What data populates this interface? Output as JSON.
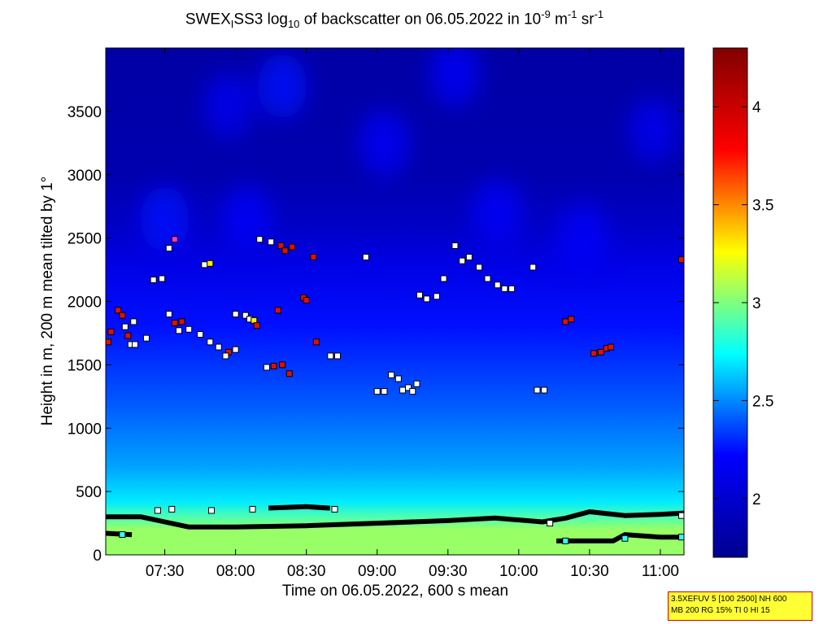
{
  "title": {
    "prefix": "SWEX",
    "sub1": "I",
    "mid1": "SS3 log",
    "sub2": "10",
    "mid2": " of backscatter on 06.05.2022 in 10",
    "sup1": "-9",
    "mid3": " m",
    "sup2": "-1",
    "mid4": " sr",
    "sup3": "-1"
  },
  "info_box": {
    "line1": "3.5XEFUV 5 [100 2500] NH 600",
    "line2": "MB 200 RG 15% TI 0 HI 15"
  },
  "chart_data": {
    "type": "heatmap",
    "xlabel": "Time on 06.05.2022, 600 s mean",
    "ylabel": "Height in m, 200 m mean tilted by 1°",
    "x_range_hours": [
      7.083,
      11.167
    ],
    "ylim": [
      0,
      4000
    ],
    "x_ticks": [
      {
        "label": "07:30",
        "h": 7.5
      },
      {
        "label": "08:00",
        "h": 8.0
      },
      {
        "label": "08:30",
        "h": 8.5
      },
      {
        "label": "09:00",
        "h": 9.0
      },
      {
        "label": "09:30",
        "h": 9.5
      },
      {
        "label": "10:00",
        "h": 10.0
      },
      {
        "label": "10:30",
        "h": 10.5
      },
      {
        "label": "11:00",
        "h": 11.0
      }
    ],
    "y_ticks": [
      0,
      500,
      1000,
      1500,
      2000,
      2500,
      3000,
      3500
    ],
    "colorbar": {
      "range": [
        1.7,
        4.3
      ],
      "ticks": [
        2,
        2.5,
        3,
        3.5,
        4
      ],
      "colors": [
        "#00008f",
        "#0000ff",
        "#00ffff",
        "#ffff00",
        "#ff0000",
        "#800000"
      ]
    },
    "background_profile": [
      {
        "h": 0,
        "v": 3.05
      },
      {
        "h": 200,
        "v": 3.05
      },
      {
        "h": 300,
        "v": 2.9
      },
      {
        "h": 420,
        "v": 2.7
      },
      {
        "h": 700,
        "v": 2.55
      },
      {
        "h": 1200,
        "v": 2.4
      },
      {
        "h": 1800,
        "v": 2.25
      },
      {
        "h": 2300,
        "v": 2.1
      },
      {
        "h": 2600,
        "v": 1.95
      },
      {
        "h": 3000,
        "v": 1.85
      },
      {
        "h": 4000,
        "v": 1.8
      }
    ],
    "cloud_patches": [
      {
        "t": 8.33,
        "h": 3700,
        "v": 2.25
      },
      {
        "t": 7.95,
        "h": 3550,
        "v": 2.15
      },
      {
        "t": 9.55,
        "h": 3800,
        "v": 2.2
      },
      {
        "t": 10.95,
        "h": 3350,
        "v": 2.15
      },
      {
        "t": 9.05,
        "h": 3250,
        "v": 2.2
      },
      {
        "t": 9.85,
        "h": 2700,
        "v": 2.2
      },
      {
        "t": 8.08,
        "h": 2650,
        "v": 2.2
      },
      {
        "t": 10.45,
        "h": 2500,
        "v": 2.2
      },
      {
        "t": 7.5,
        "h": 2650,
        "v": 2.25
      }
    ],
    "layer_lines": [
      {
        "name": "",
        "points": [
          [
            7.083,
            300
          ],
          [
            7.333,
            300
          ],
          [
            7.5,
            260
          ],
          [
            7.667,
            220
          ],
          [
            8.0,
            220
          ],
          [
            8.5,
            230
          ],
          [
            9.0,
            250
          ],
          [
            9.5,
            270
          ],
          [
            9.833,
            290
          ],
          [
            10.167,
            260
          ],
          [
            10.333,
            290
          ],
          [
            10.5,
            340
          ],
          [
            10.75,
            310
          ],
          [
            11.0,
            320
          ],
          [
            11.167,
            330
          ]
        ]
      },
      {
        "name": "",
        "points": [
          [
            7.083,
            170
          ],
          [
            7.25,
            160
          ]
        ]
      },
      {
        "name": "",
        "points": [
          [
            8.25,
            370
          ],
          [
            8.5,
            380
          ],
          [
            8.65,
            370
          ]
        ]
      },
      {
        "name": "",
        "points": [
          [
            10.283,
            110
          ],
          [
            10.667,
            110
          ],
          [
            10.75,
            160
          ],
          [
            11.0,
            140
          ],
          [
            11.167,
            140
          ]
        ]
      }
    ],
    "markers": [
      {
        "t": 7.1,
        "h": 1680,
        "c": "red"
      },
      {
        "t": 7.12,
        "h": 1760,
        "c": "red"
      },
      {
        "t": 7.17,
        "h": 1930,
        "c": "red"
      },
      {
        "t": 7.2,
        "h": 1890,
        "c": "red"
      },
      {
        "t": 7.22,
        "h": 1800,
        "c": "white"
      },
      {
        "t": 7.24,
        "h": 1730,
        "c": "red"
      },
      {
        "t": 7.26,
        "h": 1660,
        "c": "white"
      },
      {
        "t": 7.29,
        "h": 1660,
        "c": "white"
      },
      {
        "t": 7.28,
        "h": 1840,
        "c": "white"
      },
      {
        "t": 7.37,
        "h": 1710,
        "c": "white"
      },
      {
        "t": 7.42,
        "h": 2170,
        "c": "white"
      },
      {
        "t": 7.48,
        "h": 2180,
        "c": "white"
      },
      {
        "t": 7.53,
        "h": 2420,
        "c": "white"
      },
      {
        "t": 7.57,
        "h": 2490,
        "c": "magenta"
      },
      {
        "t": 7.53,
        "h": 1900,
        "c": "white"
      },
      {
        "t": 7.57,
        "h": 1830,
        "c": "red"
      },
      {
        "t": 7.62,
        "h": 1840,
        "c": "red"
      },
      {
        "t": 7.6,
        "h": 1770,
        "c": "white"
      },
      {
        "t": 7.67,
        "h": 1780,
        "c": "white"
      },
      {
        "t": 7.75,
        "h": 1740,
        "c": "white"
      },
      {
        "t": 7.82,
        "h": 1680,
        "c": "white"
      },
      {
        "t": 7.88,
        "h": 1640,
        "c": "white"
      },
      {
        "t": 7.95,
        "h": 1600,
        "c": "red"
      },
      {
        "t": 7.93,
        "h": 1570,
        "c": "white"
      },
      {
        "t": 8.0,
        "h": 1620,
        "c": "white"
      },
      {
        "t": 7.78,
        "h": 2290,
        "c": "white"
      },
      {
        "t": 7.82,
        "h": 2300,
        "c": "yellow"
      },
      {
        "t": 8.0,
        "h": 1900,
        "c": "white"
      },
      {
        "t": 8.07,
        "h": 1890,
        "c": "white"
      },
      {
        "t": 8.1,
        "h": 1860,
        "c": "white"
      },
      {
        "t": 8.13,
        "h": 1850,
        "c": "yellow"
      },
      {
        "t": 8.15,
        "h": 1810,
        "c": "red"
      },
      {
        "t": 8.17,
        "h": 2490,
        "c": "white"
      },
      {
        "t": 8.25,
        "h": 2470,
        "c": "white"
      },
      {
        "t": 8.32,
        "h": 2440,
        "c": "red"
      },
      {
        "t": 8.35,
        "h": 2400,
        "c": "red"
      },
      {
        "t": 8.4,
        "h": 2430,
        "c": "red"
      },
      {
        "t": 8.3,
        "h": 1930,
        "c": "red"
      },
      {
        "t": 8.22,
        "h": 1480,
        "c": "white"
      },
      {
        "t": 8.27,
        "h": 1490,
        "c": "red"
      },
      {
        "t": 8.33,
        "h": 1500,
        "c": "red"
      },
      {
        "t": 8.38,
        "h": 1430,
        "c": "red"
      },
      {
        "t": 8.48,
        "h": 2030,
        "c": "red"
      },
      {
        "t": 8.5,
        "h": 2010,
        "c": "red"
      },
      {
        "t": 8.55,
        "h": 2350,
        "c": "red"
      },
      {
        "t": 8.57,
        "h": 1680,
        "c": "red"
      },
      {
        "t": 8.67,
        "h": 1570,
        "c": "white"
      },
      {
        "t": 8.72,
        "h": 1570,
        "c": "white"
      },
      {
        "t": 8.92,
        "h": 2350,
        "c": "white"
      },
      {
        "t": 9.0,
        "h": 1290,
        "c": "white"
      },
      {
        "t": 9.05,
        "h": 1290,
        "c": "white"
      },
      {
        "t": 9.1,
        "h": 1420,
        "c": "white"
      },
      {
        "t": 9.15,
        "h": 1390,
        "c": "white"
      },
      {
        "t": 9.18,
        "h": 1300,
        "c": "white"
      },
      {
        "t": 9.22,
        "h": 1320,
        "c": "white"
      },
      {
        "t": 9.25,
        "h": 1290,
        "c": "white"
      },
      {
        "t": 9.28,
        "h": 1350,
        "c": "white"
      },
      {
        "t": 9.3,
        "h": 2050,
        "c": "white"
      },
      {
        "t": 9.35,
        "h": 2020,
        "c": "white"
      },
      {
        "t": 9.42,
        "h": 2040,
        "c": "white"
      },
      {
        "t": 9.47,
        "h": 2180,
        "c": "white"
      },
      {
        "t": 9.55,
        "h": 2440,
        "c": "white"
      },
      {
        "t": 9.6,
        "h": 2320,
        "c": "white"
      },
      {
        "t": 9.65,
        "h": 2350,
        "c": "white"
      },
      {
        "t": 9.72,
        "h": 2270,
        "c": "white"
      },
      {
        "t": 9.78,
        "h": 2180,
        "c": "white"
      },
      {
        "t": 9.85,
        "h": 2130,
        "c": "white"
      },
      {
        "t": 9.9,
        "h": 2100,
        "c": "white"
      },
      {
        "t": 9.95,
        "h": 2100,
        "c": "white"
      },
      {
        "t": 10.1,
        "h": 2270,
        "c": "white"
      },
      {
        "t": 10.13,
        "h": 1300,
        "c": "white"
      },
      {
        "t": 10.18,
        "h": 1300,
        "c": "white"
      },
      {
        "t": 10.33,
        "h": 1840,
        "c": "red"
      },
      {
        "t": 10.37,
        "h": 1860,
        "c": "red"
      },
      {
        "t": 10.53,
        "h": 1590,
        "c": "red"
      },
      {
        "t": 10.58,
        "h": 1600,
        "c": "red"
      },
      {
        "t": 10.62,
        "h": 1630,
        "c": "red"
      },
      {
        "t": 10.65,
        "h": 1640,
        "c": "red"
      },
      {
        "t": 11.15,
        "h": 2330,
        "c": "red"
      },
      {
        "t": 7.45,
        "h": 350,
        "c": "white"
      },
      {
        "t": 7.55,
        "h": 360,
        "c": "white"
      },
      {
        "t": 7.83,
        "h": 350,
        "c": "white"
      },
      {
        "t": 8.12,
        "h": 360,
        "c": "white"
      },
      {
        "t": 8.7,
        "h": 360,
        "c": "white"
      },
      {
        "t": 7.2,
        "h": 160,
        "c": "cyan"
      },
      {
        "t": 10.33,
        "h": 110,
        "c": "cyan"
      },
      {
        "t": 10.75,
        "h": 130,
        "c": "cyan"
      },
      {
        "t": 11.15,
        "h": 140,
        "c": "cyan"
      },
      {
        "t": 11.15,
        "h": 310,
        "c": "white"
      },
      {
        "t": 10.22,
        "h": 250,
        "c": "white"
      }
    ]
  }
}
